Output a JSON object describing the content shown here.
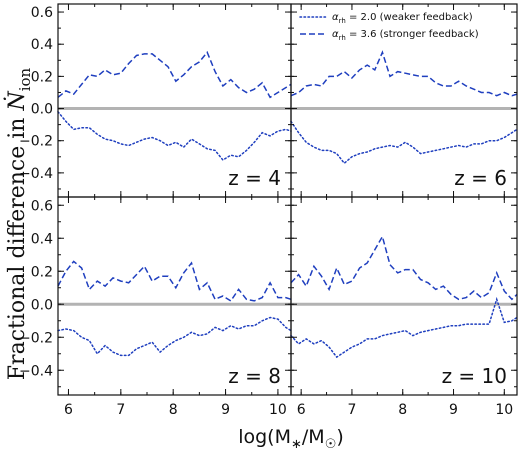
{
  "chart_data": {
    "type": "line",
    "ylabel": "Fractional difference in Ṅ_ion",
    "ylabel_parts": {
      "text": "Fractional difference in ",
      "symbol": "N",
      "sub": "ion"
    },
    "xlabel": "log(M∗/M☉)",
    "xlabel_parts": {
      "pre": "log(M",
      "sub": "∗",
      "mid": "/M",
      "sub2": "☉",
      "post": ")"
    },
    "xlim": [
      5.8,
      10.25
    ],
    "ylim": [
      -0.55,
      0.65
    ],
    "xticks": [
      6,
      7,
      8,
      9,
      10
    ],
    "yticks": [
      -0.4,
      -0.2,
      0.0,
      0.2,
      0.4,
      0.6
    ],
    "xtick_labels": [
      "6",
      "7",
      "8",
      "9",
      "10"
    ],
    "ytick_labels": [
      "−0.4",
      "−0.2",
      "0.0",
      "0.2",
      "0.4",
      "0.6"
    ],
    "reference_line": {
      "y": 0.0,
      "color": "#b3b3b3"
    },
    "legend": {
      "location": "upper right of top-right panel",
      "entries": [
        {
          "symbol": "α",
          "sub": "rh",
          "text": " = 2.0 (weaker feedback)",
          "style": "dotted",
          "color": "#1f3fbf"
        },
        {
          "symbol": "α",
          "sub": "rh",
          "text": " = 3.6 (stronger feedback)",
          "style": "dashed",
          "color": "#1f3fbf"
        }
      ]
    },
    "panels": [
      {
        "label": "z = 4",
        "x": [
          5.8,
          5.95,
          6.1,
          6.25,
          6.4,
          6.55,
          6.7,
          6.85,
          7.0,
          7.15,
          7.3,
          7.45,
          7.6,
          7.75,
          7.9,
          8.05,
          8.2,
          8.35,
          8.5,
          8.65,
          8.8,
          8.95,
          9.1,
          9.25,
          9.4,
          9.55,
          9.7,
          9.85,
          10.0,
          10.15,
          10.25
        ],
        "series": [
          {
            "name": "α_rh = 3.6 (stronger feedback)",
            "style": "dashed",
            "values": [
              0.07,
              0.11,
              0.09,
              0.15,
              0.21,
              0.2,
              0.24,
              0.21,
              0.22,
              0.28,
              0.33,
              0.34,
              0.34,
              0.3,
              0.26,
              0.17,
              0.21,
              0.26,
              0.29,
              0.35,
              0.23,
              0.14,
              0.18,
              0.13,
              0.1,
              0.12,
              0.16,
              0.07,
              0.1,
              0.13,
              0.15
            ]
          },
          {
            "name": "α_rh = 2.0 (weaker feedback)",
            "style": "dotted",
            "values": [
              -0.02,
              -0.08,
              -0.13,
              -0.12,
              -0.12,
              -0.16,
              -0.19,
              -0.2,
              -0.22,
              -0.23,
              -0.21,
              -0.19,
              -0.18,
              -0.2,
              -0.23,
              -0.21,
              -0.24,
              -0.19,
              -0.22,
              -0.25,
              -0.26,
              -0.32,
              -0.29,
              -0.3,
              -0.26,
              -0.21,
              -0.15,
              -0.17,
              -0.14,
              -0.13,
              -0.14
            ]
          }
        ]
      },
      {
        "label": "z = 6",
        "x": [
          5.8,
          5.95,
          6.1,
          6.25,
          6.4,
          6.55,
          6.7,
          6.85,
          7.0,
          7.15,
          7.3,
          7.45,
          7.6,
          7.75,
          7.9,
          8.05,
          8.2,
          8.35,
          8.5,
          8.65,
          8.8,
          8.95,
          9.1,
          9.25,
          9.4,
          9.55,
          9.7,
          9.85,
          10.0,
          10.15,
          10.25
        ],
        "series": [
          {
            "name": "α_rh = 3.6 (stronger feedback)",
            "style": "dashed",
            "values": [
              0.08,
              0.1,
              0.14,
              0.15,
              0.14,
              0.2,
              0.2,
              0.23,
              0.19,
              0.24,
              0.27,
              0.24,
              0.35,
              0.2,
              0.23,
              0.22,
              0.21,
              0.2,
              0.2,
              0.16,
              0.14,
              0.14,
              0.17,
              0.14,
              0.12,
              0.1,
              0.1,
              0.08,
              0.1,
              0.08,
              0.09
            ]
          },
          {
            "name": "α_rh = 2.0 (weaker feedback)",
            "style": "dotted",
            "values": [
              -0.08,
              -0.15,
              -0.21,
              -0.24,
              -0.26,
              -0.26,
              -0.28,
              -0.34,
              -0.3,
              -0.28,
              -0.27,
              -0.25,
              -0.24,
              -0.23,
              -0.24,
              -0.21,
              -0.24,
              -0.28,
              -0.27,
              -0.26,
              -0.25,
              -0.24,
              -0.23,
              -0.24,
              -0.22,
              -0.22,
              -0.2,
              -0.2,
              -0.18,
              -0.15,
              -0.13
            ]
          }
        ]
      },
      {
        "label": "z = 8",
        "x": [
          5.8,
          5.95,
          6.1,
          6.25,
          6.4,
          6.55,
          6.7,
          6.85,
          7.0,
          7.15,
          7.3,
          7.45,
          7.6,
          7.75,
          7.9,
          8.05,
          8.2,
          8.35,
          8.5,
          8.65,
          8.8,
          8.95,
          9.1,
          9.25,
          9.4,
          9.55,
          9.7,
          9.85,
          10.0,
          10.15,
          10.25
        ],
        "series": [
          {
            "name": "α_rh = 3.6 (stronger feedback)",
            "style": "dashed",
            "values": [
              0.11,
              0.2,
              0.26,
              0.22,
              0.09,
              0.14,
              0.11,
              0.16,
              0.14,
              0.13,
              0.18,
              0.23,
              0.14,
              0.17,
              0.17,
              0.1,
              0.19,
              0.25,
              0.09,
              0.13,
              0.03,
              0.05,
              0.02,
              0.09,
              0.03,
              0.02,
              0.04,
              0.13,
              0.04,
              0.04,
              0.03
            ]
          },
          {
            "name": "α_rh = 2.0 (weaker feedback)",
            "style": "dotted",
            "values": [
              -0.16,
              -0.15,
              -0.16,
              -0.2,
              -0.22,
              -0.3,
              -0.25,
              -0.29,
              -0.31,
              -0.31,
              -0.27,
              -0.25,
              -0.23,
              -0.29,
              -0.25,
              -0.22,
              -0.2,
              -0.17,
              -0.19,
              -0.18,
              -0.14,
              -0.16,
              -0.13,
              -0.15,
              -0.13,
              -0.13,
              -0.1,
              -0.08,
              -0.09,
              -0.14,
              -0.16
            ]
          }
        ]
      },
      {
        "label": "z = 10",
        "x": [
          5.8,
          5.95,
          6.1,
          6.25,
          6.4,
          6.55,
          6.7,
          6.85,
          7.0,
          7.15,
          7.3,
          7.45,
          7.6,
          7.75,
          7.9,
          8.05,
          8.2,
          8.35,
          8.5,
          8.65,
          8.8,
          8.95,
          9.1,
          9.25,
          9.4,
          9.55,
          9.7,
          9.85,
          10.0,
          10.15,
          10.25
        ],
        "series": [
          {
            "name": "α_rh = 3.6 (stronger feedback)",
            "style": "dashed",
            "values": [
              0.13,
              0.18,
              0.11,
              0.23,
              0.17,
              0.09,
              0.22,
              0.12,
              0.14,
              0.22,
              0.25,
              0.33,
              0.41,
              0.24,
              0.19,
              0.21,
              0.21,
              0.15,
              0.13,
              0.09,
              0.11,
              0.06,
              0.03,
              0.04,
              0.08,
              0.04,
              0.07,
              0.19,
              0.08,
              0.03,
              0.06
            ]
          },
          {
            "name": "α_rh = 2.0 (weaker feedback)",
            "style": "dotted",
            "values": [
              -0.19,
              -0.24,
              -0.21,
              -0.24,
              -0.22,
              -0.26,
              -0.32,
              -0.29,
              -0.26,
              -0.24,
              -0.21,
              -0.21,
              -0.19,
              -0.18,
              -0.17,
              -0.16,
              -0.19,
              -0.17,
              -0.16,
              -0.15,
              -0.14,
              -0.13,
              -0.13,
              -0.12,
              -0.12,
              -0.12,
              -0.12,
              0.03,
              -0.11,
              -0.1,
              -0.08
            ]
          }
        ]
      }
    ]
  },
  "colors": {
    "series": "#1f3fbf",
    "reference": "#b3b3b3",
    "axes": "#111111"
  }
}
